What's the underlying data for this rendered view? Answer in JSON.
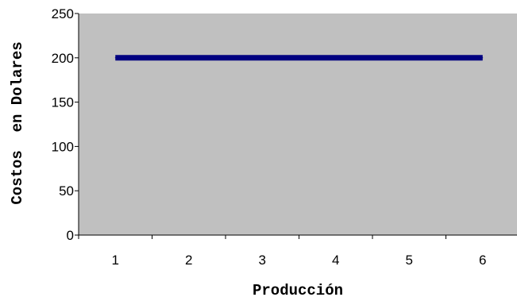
{
  "chart_data": {
    "type": "line",
    "title": "",
    "xlabel": "Producción",
    "ylabel": "Costos  en Dolares",
    "categories": [
      "1",
      "2",
      "3",
      "4",
      "5",
      "6"
    ],
    "series": [
      {
        "values": [
          200,
          200,
          200,
          200,
          200,
          200
        ],
        "color": "#000080"
      }
    ],
    "ylim": [
      0,
      250
    ],
    "yticks": [
      0,
      50,
      100,
      150,
      200,
      250
    ],
    "plot_background": "#c0c0c0",
    "grid": false,
    "legend": "none"
  }
}
